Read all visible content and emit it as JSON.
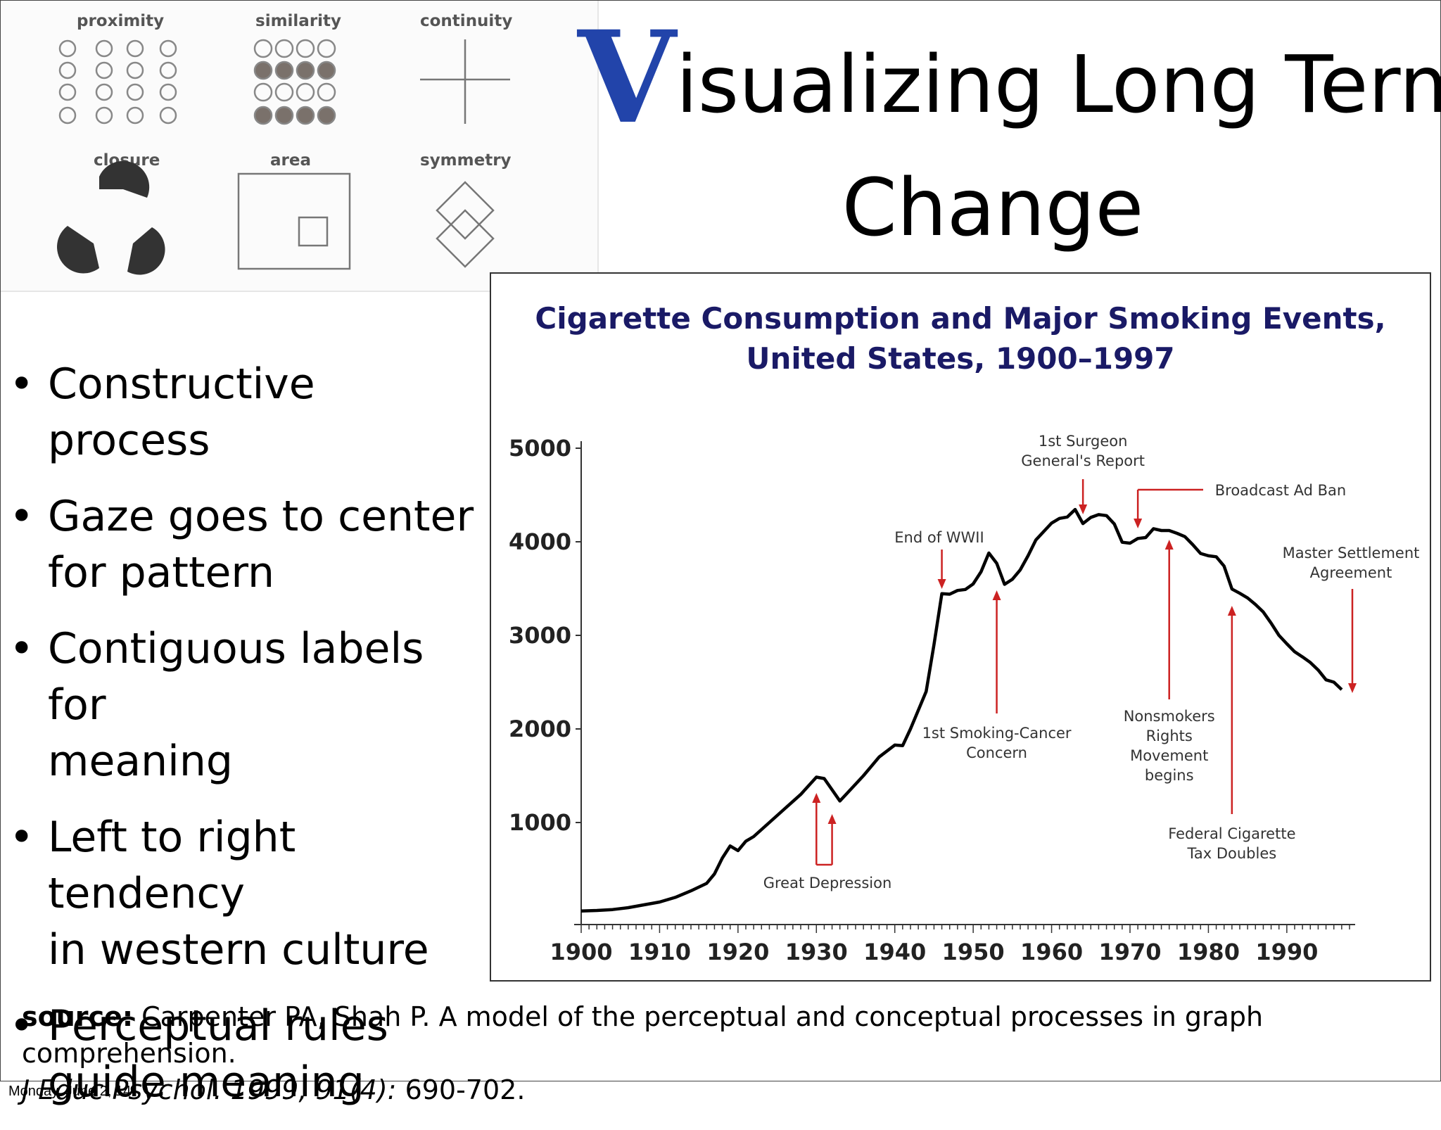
{
  "gestalt": {
    "labels": [
      "proximity",
      "similarity",
      "continuity",
      "closure",
      "area",
      "symmetry"
    ]
  },
  "title": {
    "initial": "V",
    "line1_rest": "isualizing Long Term",
    "line2": "Change"
  },
  "bullets": [
    {
      "line1": "Constructive process",
      "line2": ""
    },
    {
      "line1": "Gaze goes to center",
      "line2": "for pattern"
    },
    {
      "line1": "Contiguous labels for",
      "line2": "meaning"
    },
    {
      "line1": "Left to right tendency",
      "line2": "in western culture"
    },
    {
      "line1": "Perceptual rules",
      "line2": "guide meaning"
    }
  ],
  "chart_data": {
    "type": "line",
    "title_line1": "Cigarette Consumption and Major Smoking Events,",
    "title_line2": "United States, 1900–1997",
    "xlabel": "",
    "ylabel": "",
    "xlim": [
      1900,
      1998
    ],
    "ylim": [
      0,
      5000
    ],
    "x_ticks": [
      1900,
      1910,
      1920,
      1930,
      1940,
      1950,
      1960,
      1970,
      1980,
      1990
    ],
    "y_ticks": [
      1000,
      2000,
      3000,
      4000,
      5000
    ],
    "grid": false,
    "line_color": "#000000",
    "annotation_color": "#cc2222",
    "title_color": "#1a1a66",
    "x": [
      1900,
      1902,
      1904,
      1906,
      1908,
      1910,
      1912,
      1914,
      1916,
      1917,
      1918,
      1919,
      1920,
      1921,
      1922,
      1924,
      1926,
      1928,
      1930,
      1931,
      1932,
      1933,
      1934,
      1936,
      1937,
      1938,
      1940,
      1941,
      1942,
      1944,
      1945,
      1946,
      1947,
      1948,
      1949,
      1950,
      1951,
      1952,
      1953,
      1954,
      1955,
      1956,
      1957,
      1958,
      1960,
      1961,
      1962,
      1963,
      1964,
      1965,
      1966,
      1967,
      1968,
      1969,
      1970,
      1971,
      1972,
      1973,
      1974,
      1975,
      1976,
      1977,
      1978,
      1979,
      1980,
      1981,
      1982,
      1983,
      1984,
      1985,
      1986,
      1987,
      1988,
      1989,
      1990,
      1991,
      1992,
      1993,
      1994,
      1995,
      1996,
      1997
    ],
    "values": [
      54,
      60,
      70,
      90,
      120,
      150,
      200,
      270,
      350,
      450,
      620,
      750,
      700,
      800,
      850,
      1000,
      1150,
      1300,
      1485,
      1470,
      1350,
      1230,
      1320,
      1500,
      1600,
      1700,
      1828,
      1822,
      2000,
      2400,
      2900,
      3446,
      3440,
      3480,
      3490,
      3550,
      3680,
      3880,
      3770,
      3545,
      3600,
      3700,
      3850,
      4020,
      4200,
      4250,
      4265,
      4345,
      4195,
      4260,
      4290,
      4280,
      4190,
      3995,
      3985,
      4035,
      4045,
      4140,
      4120,
      4120,
      4090,
      4055,
      3970,
      3875,
      3850,
      3840,
      3740,
      3495,
      3450,
      3400,
      3330,
      3250,
      3130,
      3000,
      2910,
      2825,
      2770,
      2710,
      2630,
      2525,
      2500,
      2420
    ],
    "annotations": [
      {
        "text_lines": [
          "Great Depression"
        ],
        "years": [
          1930,
          1932
        ]
      },
      {
        "text_lines": [
          "End of WWII"
        ],
        "year": 1946
      },
      {
        "text_lines": [
          "1st Smoking-Cancer",
          "Concern"
        ],
        "year": 1953
      },
      {
        "text_lines": [
          "1st Surgeon",
          "General's Report"
        ],
        "year": 1964
      },
      {
        "text_lines": [
          "Broadcast Ad Ban"
        ],
        "year": 1971
      },
      {
        "text_lines": [
          "Nonsmokers",
          "Rights",
          "Movement",
          "begins"
        ],
        "year": 1975
      },
      {
        "text_lines": [
          "Federal Cigarette",
          "Tax Doubles"
        ],
        "year": 1983
      },
      {
        "text_lines": [
          "Master Settlement",
          "Agreement"
        ],
        "year": 1998
      }
    ]
  },
  "source": {
    "label": "source:",
    "text": "Carpenter PA, Shah P.  A model of the perceptual and conceptual processes in graph comprehension.",
    "journal": "J Educ Psychol. 1999, 91(4):",
    "pages": "690-702."
  },
  "footer": {
    "date": "Monday, June 2, 14"
  }
}
